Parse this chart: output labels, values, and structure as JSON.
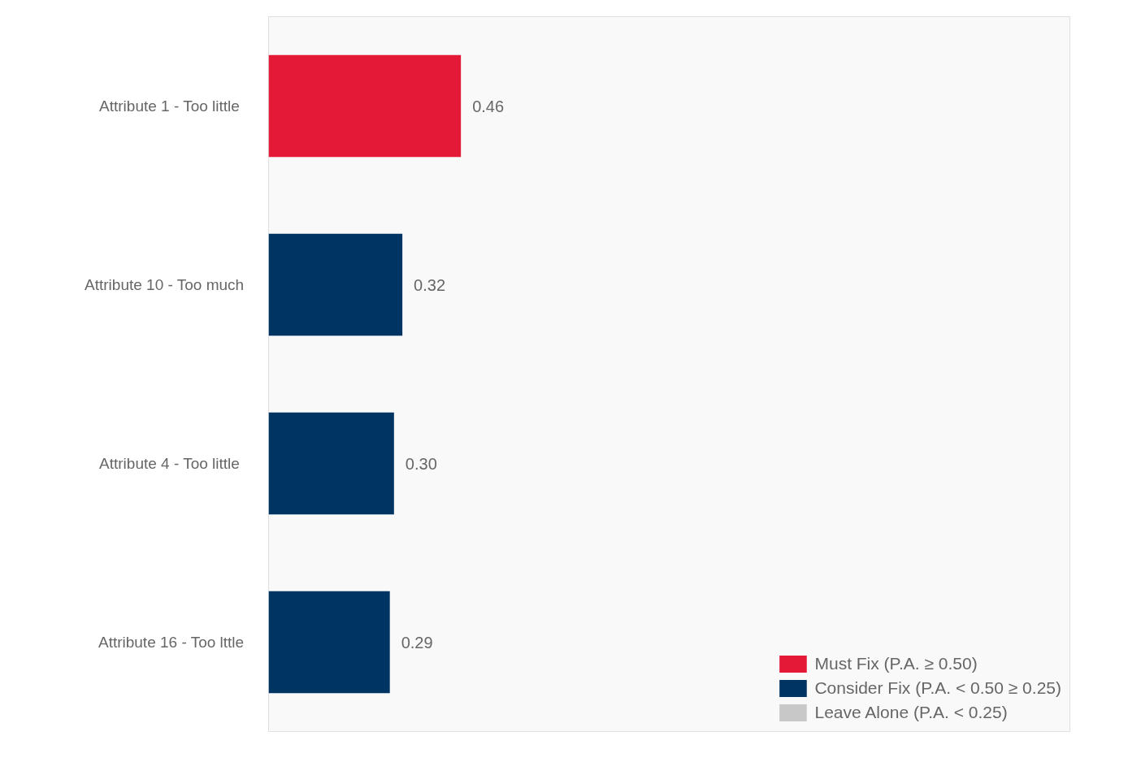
{
  "chart_data": {
    "type": "bar",
    "orientation": "horizontal",
    "categories": [
      "Attribute 1 -  Too little",
      "Attribute 10 - Too much",
      "Attribute 4 -  Too little",
      "Attribute 16 - Too lttle"
    ],
    "series": [
      {
        "name": "Must Fix (P.A. ≥ 0.50)",
        "color": "#e31937",
        "values": [
          0.46,
          null,
          null,
          null
        ],
        "value_labels": [
          "0.46",
          null,
          null,
          null
        ]
      },
      {
        "name": "Consider Fix (P.A. < 0.50 ≥ 0.25)",
        "color": "#003462",
        "values": [
          null,
          0.32,
          0.3,
          0.29
        ],
        "value_labels": [
          null,
          "0.32",
          "0.30",
          "0.29"
        ]
      },
      {
        "name": "Leave Alone (P.A. < 0.25)",
        "color": "#c8c8c8",
        "values": [
          null,
          null,
          null,
          null
        ],
        "value_labels": [
          null,
          null,
          null,
          null
        ]
      }
    ],
    "legend": "bottom right",
    "tick_labels": "y",
    "grid": false
  }
}
